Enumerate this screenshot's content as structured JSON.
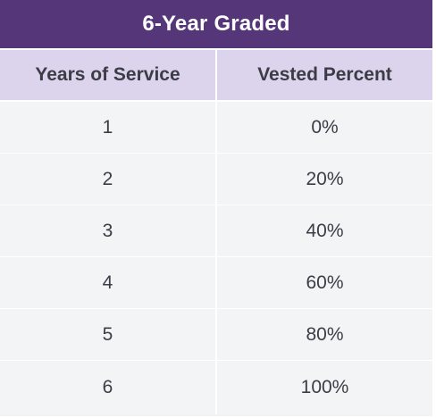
{
  "table": {
    "title": "6-Year Graded",
    "columns": [
      "Years of Service",
      "Vested Percent"
    ],
    "rows": [
      [
        "1",
        "0%"
      ],
      [
        "2",
        "20%"
      ],
      [
        "3",
        "40%"
      ],
      [
        "4",
        "60%"
      ],
      [
        "5",
        "80%"
      ],
      [
        "6",
        "100%"
      ]
    ]
  },
  "colors": {
    "title_background": "#553679",
    "header_background": "#dcd3ec",
    "row_background": "#f3f4f6",
    "text": "#3c3c46"
  }
}
